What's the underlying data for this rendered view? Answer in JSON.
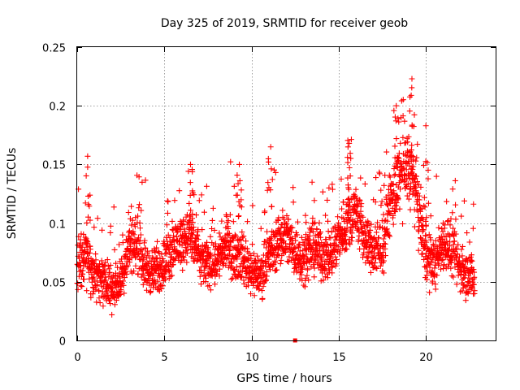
{
  "chart_data": {
    "type": "scatter",
    "title": "Day 325 of 2019, SRMTID for receiver geob",
    "xlabel": "GPS time / hours",
    "ylabel": "SRMTID / TECUs",
    "xlim": [
      0,
      24
    ],
    "ylim": [
      0,
      0.25
    ],
    "xticks": [
      0,
      5,
      10,
      15,
      20
    ],
    "yticks": [
      0,
      0.05,
      0.1,
      0.15,
      0.2,
      0.25
    ],
    "xtick_labels": [
      "0",
      "5",
      "10",
      "15",
      "20"
    ],
    "ytick_labels": [
      "0",
      "0.05",
      "0.1",
      "0.15",
      "0.2",
      "0.25"
    ],
    "grid": true,
    "marker": "+",
    "color": "#ff0000",
    "series_name": "SRMTID",
    "approx_sample_interval_hours": 0.0042,
    "x_range_observed": [
      0,
      22.8
    ],
    "trend": {
      "x": [
        0,
        0.5,
        1,
        1.5,
        2,
        2.5,
        3,
        3.5,
        4,
        4.5,
        5,
        5.5,
        6,
        6.5,
        7,
        7.5,
        8,
        8.5,
        9,
        9.5,
        10,
        10.5,
        11,
        11.5,
        12,
        12.5,
        13,
        13.5,
        14,
        14.5,
        15,
        15.5,
        16,
        16.5,
        17,
        17.5,
        18,
        18.5,
        19,
        19.5,
        20,
        20.5,
        21,
        21.5,
        22,
        22.5,
        22.8
      ],
      "y": [
        0.06,
        0.075,
        0.055,
        0.048,
        0.045,
        0.05,
        0.085,
        0.08,
        0.06,
        0.058,
        0.065,
        0.08,
        0.085,
        0.09,
        0.07,
        0.065,
        0.07,
        0.08,
        0.075,
        0.07,
        0.06,
        0.055,
        0.07,
        0.085,
        0.09,
        0.075,
        0.07,
        0.08,
        0.075,
        0.07,
        0.09,
        0.1,
        0.11,
        0.085,
        0.075,
        0.08,
        0.12,
        0.135,
        0.15,
        0.12,
        0.07,
        0.065,
        0.085,
        0.075,
        0.06,
        0.055,
        0.05
      ]
    },
    "peaks": [
      {
        "x": 0.6,
        "y": 0.157
      },
      {
        "x": 6.5,
        "y": 0.15
      },
      {
        "x": 9.3,
        "y": 0.15
      },
      {
        "x": 11.1,
        "y": 0.165
      },
      {
        "x": 15.6,
        "y": 0.168
      },
      {
        "x": 18.3,
        "y": 0.2
      },
      {
        "x": 19.2,
        "y": 0.223
      },
      {
        "x": 20.0,
        "y": 0.183
      }
    ],
    "extra_marker": {
      "x": 12.5,
      "y": 0.0,
      "shape": "square"
    }
  }
}
